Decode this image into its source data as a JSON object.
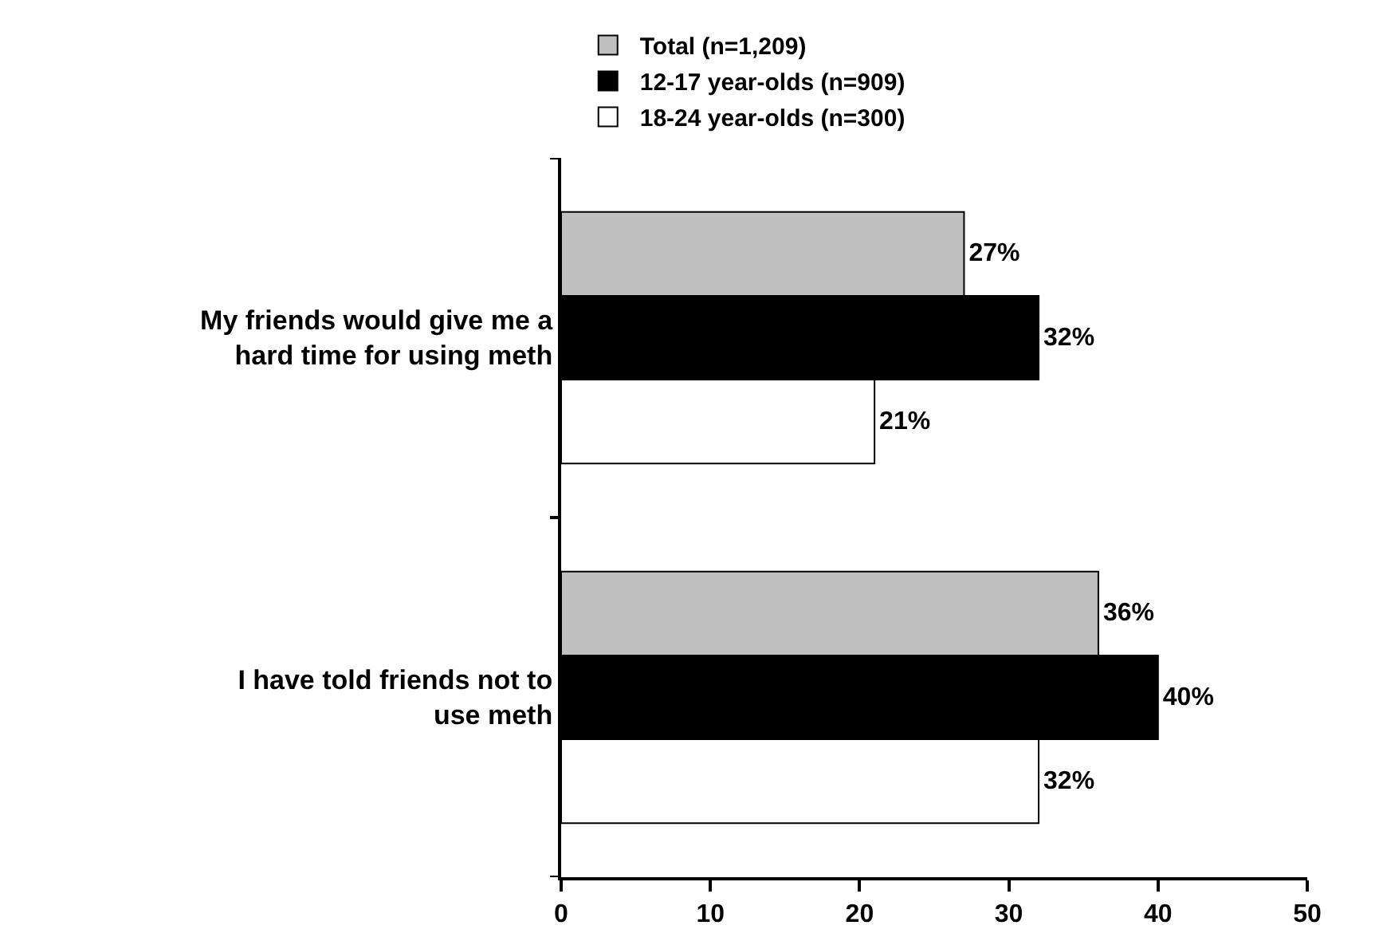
{
  "chart_data": {
    "type": "bar",
    "orientation": "horizontal",
    "categories": [
      "My friends would give me a hard time for using meth",
      "I have told friends not to use meth"
    ],
    "series": [
      {
        "name": "Total (n=1,209)",
        "color": "#c0c0c0",
        "values": [
          27,
          36
        ],
        "value_labels": [
          "27%",
          "36%"
        ]
      },
      {
        "name": "12-17 year-olds (n=909)",
        "color": "#000000",
        "values": [
          32,
          40
        ],
        "value_labels": [
          "32%",
          "40%"
        ]
      },
      {
        "name": "18-24 year-olds (n=300)",
        "color": "#ffffff",
        "values": [
          21,
          32
        ],
        "value_labels": [
          "21%",
          "32%"
        ]
      }
    ],
    "xlim": [
      0,
      50
    ],
    "xticks": [
      0,
      10,
      20,
      30,
      40,
      50
    ],
    "grid": false,
    "legend": "top"
  }
}
